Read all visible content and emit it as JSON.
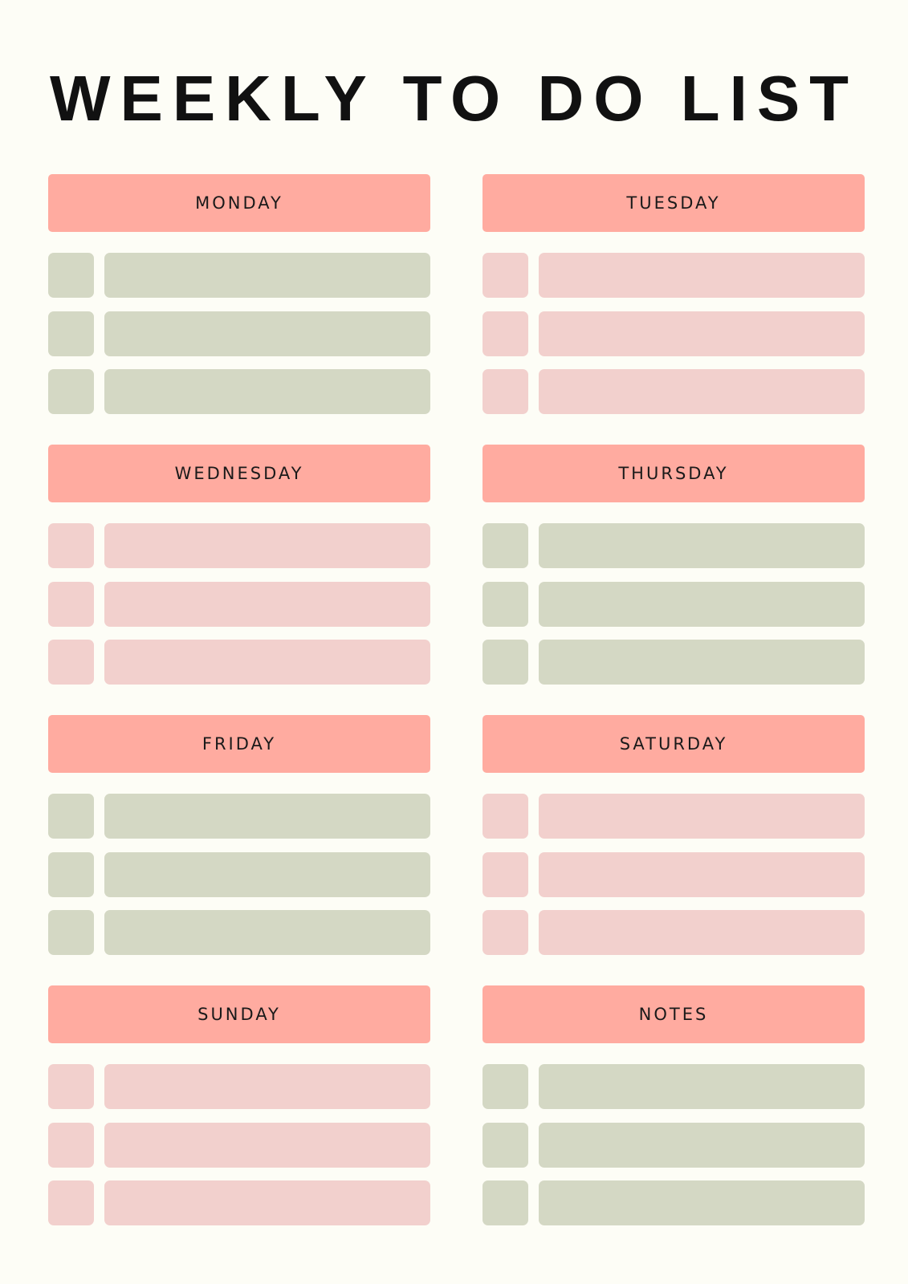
{
  "title": "WEEKLY TO DO LIST",
  "sections": [
    {
      "label": "MONDAY"
    },
    {
      "label": "TUESDAY"
    },
    {
      "label": "WEDNESDAY"
    },
    {
      "label": "THURSDAY"
    },
    {
      "label": "FRIDAY"
    },
    {
      "label": "SATURDAY"
    },
    {
      "label": "SUNDAY"
    },
    {
      "label": "NOTES"
    }
  ]
}
